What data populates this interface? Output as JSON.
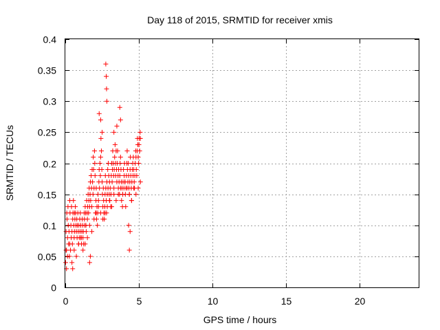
{
  "chart_data": {
    "type": "scatter",
    "title": "Day 118 of 2015, SRMTID for receiver xmis",
    "xlabel": "GPS time / hours",
    "ylabel": "SRMTID / TECUs",
    "xlim": [
      0,
      24
    ],
    "ylim": [
      0,
      0.4
    ],
    "x_ticks": [
      0,
      5,
      10,
      15,
      20
    ],
    "x_tick_labels": [
      "0",
      "5",
      "10",
      "15",
      "20"
    ],
    "y_ticks": [
      0,
      0.05,
      0.1,
      0.15,
      0.2,
      0.25,
      0.3,
      0.35,
      0.4
    ],
    "y_tick_labels": [
      "0",
      "0.05",
      "0.1",
      "0.15",
      "0.2",
      "0.25",
      "0.3",
      "0.35",
      "0.4"
    ],
    "grid": true,
    "marker": "+",
    "color": "#ff0000",
    "series": [
      {
        "name": "SRMTID",
        "x": [
          0.02,
          0.05,
          0.08,
          0.1,
          0.12,
          0.15,
          0.18,
          0.2,
          0.22,
          0.25,
          0.28,
          0.3,
          0.32,
          0.35,
          0.38,
          0.4,
          0.42,
          0.45,
          0.48,
          0.5,
          0.52,
          0.55,
          0.58,
          0.6,
          0.62,
          0.65,
          0.68,
          0.7,
          0.72,
          0.75,
          0.78,
          0.8,
          0.82,
          0.85,
          0.88,
          0.9,
          0.92,
          0.95,
          0.98,
          1.0,
          1.02,
          1.05,
          1.08,
          1.1,
          1.12,
          1.15,
          1.18,
          1.2,
          1.22,
          1.25,
          1.28,
          1.3,
          1.32,
          1.35,
          1.38,
          1.4,
          1.42,
          1.45,
          1.48,
          1.5,
          1.52,
          1.55,
          1.58,
          1.6,
          1.62,
          1.65,
          1.68,
          1.7,
          1.72,
          1.75,
          1.78,
          1.8,
          1.82,
          1.85,
          1.88,
          1.9,
          1.92,
          1.95,
          1.98,
          2.0,
          2.02,
          2.05,
          2.08,
          2.1,
          2.12,
          2.15,
          2.18,
          2.2,
          2.22,
          2.25,
          2.28,
          2.3,
          2.32,
          2.35,
          2.38,
          2.4,
          2.42,
          2.45,
          2.48,
          2.5,
          2.52,
          2.55,
          2.58,
          2.6,
          2.62,
          2.65,
          2.68,
          2.7,
          2.72,
          2.75,
          2.78,
          2.8,
          2.82,
          2.85,
          2.88,
          2.9,
          2.92,
          2.95,
          2.98,
          3.0,
          3.02,
          3.05,
          3.08,
          3.1,
          3.12,
          3.15,
          3.18,
          3.2,
          3.22,
          3.25,
          3.28,
          3.3,
          3.32,
          3.35,
          3.38,
          3.4,
          3.42,
          3.45,
          3.48,
          3.5,
          3.52,
          3.55,
          3.58,
          3.6,
          3.62,
          3.65,
          3.68,
          3.7,
          3.72,
          3.75,
          3.78,
          3.8,
          3.82,
          3.85,
          3.88,
          3.9,
          3.92,
          3.95,
          3.98,
          4.0,
          4.02,
          4.05,
          4.08,
          4.1,
          4.12,
          4.15,
          4.18,
          4.2,
          4.22,
          4.25,
          4.28,
          4.3,
          4.32,
          4.35,
          4.38,
          4.4,
          4.42,
          4.45,
          4.48,
          4.5,
          4.52,
          4.55,
          4.58,
          4.6,
          4.62,
          4.65,
          4.68,
          4.7,
          4.72,
          4.75,
          4.78,
          4.8,
          4.82,
          4.85,
          4.88,
          4.9,
          4.92,
          4.95,
          4.98,
          5.0,
          5.02,
          5.05,
          5.08,
          5.1,
          0.05,
          0.15,
          0.3,
          0.45,
          0.6,
          0.75,
          0.9,
          1.05,
          1.2,
          1.35,
          1.5,
          1.65,
          1.8,
          1.95,
          2.1,
          2.25,
          2.4,
          2.55,
          2.7,
          2.85,
          3.0,
          3.15,
          3.3,
          3.45,
          3.6,
          3.75,
          3.9,
          4.05,
          4.2,
          4.35,
          4.5,
          4.65,
          4.8,
          4.95,
          5.1,
          2.75,
          2.78,
          2.8,
          2.82,
          3.7,
          3.75,
          2.3,
          2.4,
          2.5,
          4.3,
          4.4,
          4.35,
          0.08,
          0.5,
          0.62,
          1.65,
          1.7,
          3.3,
          3.5
        ],
        "y": [
          0.04,
          0.09,
          0.06,
          0.12,
          0.11,
          0.08,
          0.13,
          0.1,
          0.07,
          0.09,
          0.05,
          0.14,
          0.12,
          0.06,
          0.1,
          0.08,
          0.13,
          0.09,
          0.07,
          0.11,
          0.12,
          0.14,
          0.1,
          0.08,
          0.09,
          0.11,
          0.13,
          0.12,
          0.1,
          0.09,
          0.11,
          0.08,
          0.1,
          0.12,
          0.09,
          0.07,
          0.1,
          0.08,
          0.11,
          0.09,
          0.12,
          0.1,
          0.08,
          0.07,
          0.09,
          0.11,
          0.1,
          0.08,
          0.09,
          0.07,
          0.12,
          0.11,
          0.1,
          0.13,
          0.12,
          0.1,
          0.09,
          0.14,
          0.12,
          0.11,
          0.13,
          0.15,
          0.12,
          0.14,
          0.16,
          0.13,
          0.15,
          0.17,
          0.14,
          0.18,
          0.16,
          0.13,
          0.19,
          0.17,
          0.15,
          0.21,
          0.19,
          0.16,
          0.22,
          0.2,
          0.18,
          0.12,
          0.14,
          0.16,
          0.11,
          0.13,
          0.1,
          0.12,
          0.15,
          0.14,
          0.17,
          0.19,
          0.16,
          0.2,
          0.18,
          0.21,
          0.24,
          0.22,
          0.19,
          0.17,
          0.15,
          0.13,
          0.16,
          0.14,
          0.12,
          0.11,
          0.13,
          0.15,
          0.18,
          0.16,
          0.14,
          0.12,
          0.17,
          0.15,
          0.19,
          0.16,
          0.2,
          0.18,
          0.15,
          0.17,
          0.14,
          0.16,
          0.13,
          0.15,
          0.18,
          0.2,
          0.17,
          0.19,
          0.22,
          0.2,
          0.18,
          0.16,
          0.19,
          0.21,
          0.23,
          0.2,
          0.18,
          0.22,
          0.19,
          0.17,
          0.2,
          0.22,
          0.18,
          0.16,
          0.19,
          0.17,
          0.15,
          0.18,
          0.2,
          0.21,
          0.19,
          0.17,
          0.14,
          0.16,
          0.13,
          0.15,
          0.17,
          0.19,
          0.16,
          0.18,
          0.2,
          0.17,
          0.15,
          0.13,
          0.16,
          0.18,
          0.2,
          0.22,
          0.19,
          0.17,
          0.2,
          0.18,
          0.16,
          0.15,
          0.17,
          0.19,
          0.21,
          0.18,
          0.16,
          0.14,
          0.17,
          0.19,
          0.2,
          0.18,
          0.21,
          0.19,
          0.17,
          0.16,
          0.18,
          0.2,
          0.22,
          0.21,
          0.19,
          0.18,
          0.22,
          0.24,
          0.23,
          0.21,
          0.2,
          0.23,
          0.24,
          0.22,
          0.25,
          0.24,
          0.06,
          0.05,
          0.07,
          0.04,
          0.06,
          0.05,
          0.07,
          0.08,
          0.06,
          0.07,
          0.08,
          0.1,
          0.09,
          0.11,
          0.12,
          0.13,
          0.12,
          0.11,
          0.12,
          0.13,
          0.14,
          0.13,
          0.15,
          0.14,
          0.15,
          0.16,
          0.15,
          0.17,
          0.16,
          0.15,
          0.14,
          0.16,
          0.15,
          0.16,
          0.17,
          0.36,
          0.34,
          0.32,
          0.3,
          0.29,
          0.27,
          0.28,
          0.27,
          0.25,
          0.1,
          0.09,
          0.06,
          0.03,
          0.03,
          0.12,
          0.04,
          0.05,
          0.25,
          0.26
        ]
      }
    ]
  }
}
